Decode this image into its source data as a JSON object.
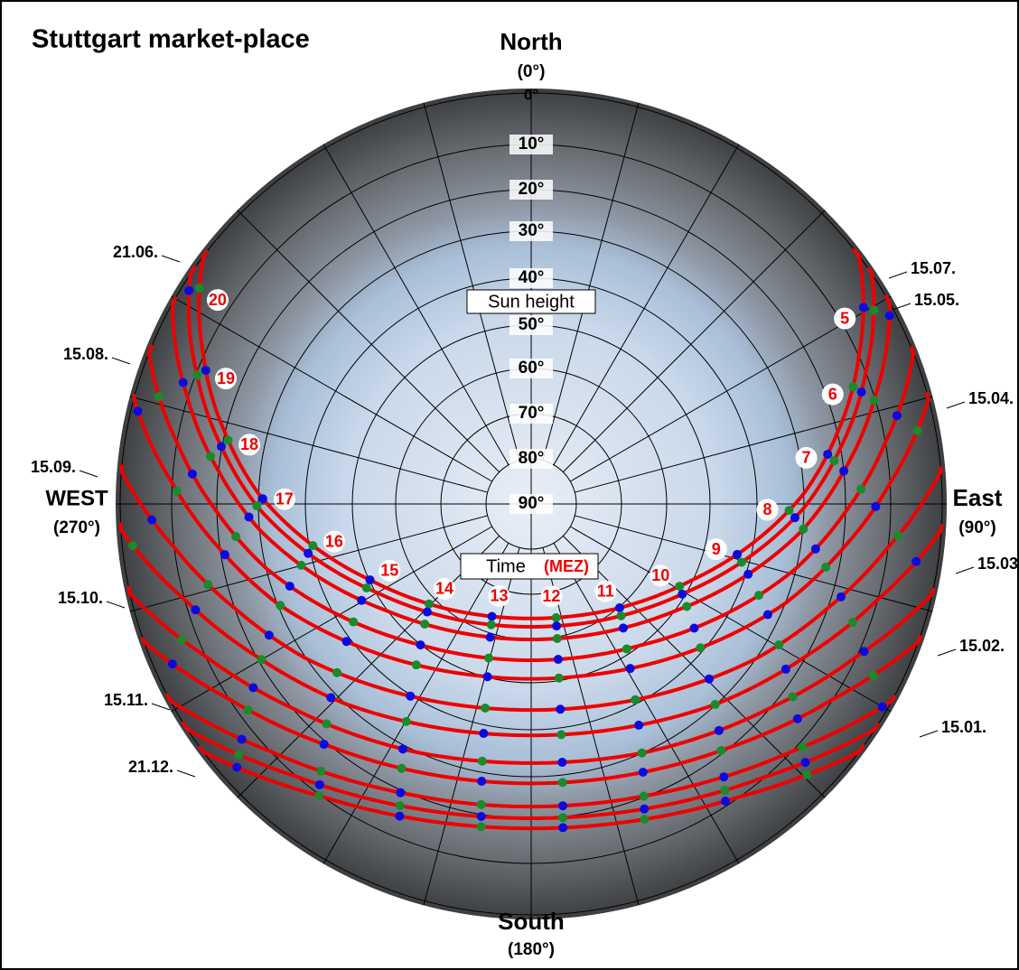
{
  "header": {
    "title": "Stuttgart market-place"
  },
  "compass": {
    "north": "North",
    "north_deg": "(0°)",
    "east": "East",
    "east_deg": "(90°)",
    "south": "South",
    "south_deg": "(180°)",
    "west": "WEST",
    "west_deg": "(270°)"
  },
  "altitude_rings": [
    "0°",
    "10°",
    "20°",
    "30°",
    "40°",
    "50°",
    "60°",
    "70°",
    "80°",
    "90°"
  ],
  "sun_height_label": "Sun height",
  "time_label": "Time",
  "time_unit": "(MEZ)",
  "hours": [
    "5",
    "6",
    "7",
    "8",
    "9",
    "10",
    "11",
    "12",
    "13",
    "14",
    "15",
    "16",
    "17",
    "18",
    "19",
    "20"
  ],
  "dates": [
    "21.06.",
    "15.07.",
    "15.05.",
    "15.08.",
    "15.04.",
    "15.09.",
    "15.03.",
    "15.10.",
    "15.02.",
    "15.11.",
    "15.01.",
    "21.12."
  ]
}
